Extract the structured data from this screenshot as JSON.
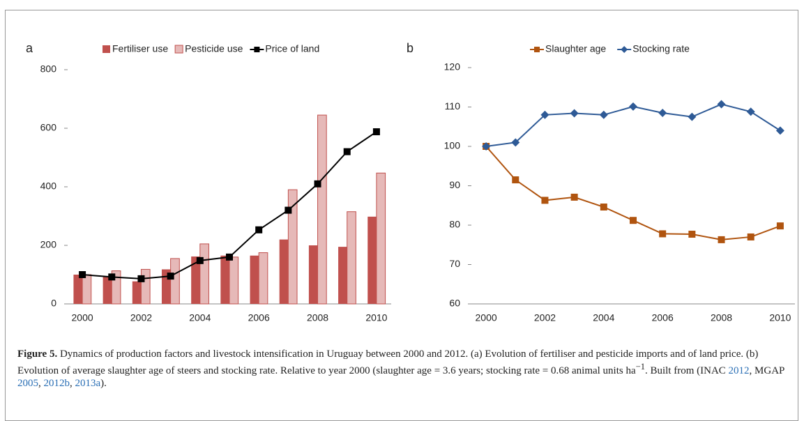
{
  "chart_data": [
    {
      "type": "bar",
      "panel_label": "a",
      "categories": [
        "2000",
        null,
        "2002",
        null,
        "2004",
        null,
        "2006",
        null,
        "2008",
        null,
        "2010"
      ],
      "series": [
        {
          "name": "Fertiliser use",
          "type": "bar",
          "color": "#c0504d",
          "values": [
            100,
            95,
            77,
            118,
            162,
            165,
            165,
            220,
            200,
            195,
            298
          ]
        },
        {
          "name": "Pesticide use",
          "type": "bar",
          "color": "#e6b9b8",
          "edge": "#c0504d",
          "values": [
            100,
            113,
            118,
            155,
            205,
            160,
            175,
            390,
            645,
            315,
            447
          ]
        },
        {
          "name": "Price of land",
          "type": "line",
          "color": "#000000",
          "marker": "square",
          "values": [
            100,
            92,
            86,
            95,
            148,
            160,
            253,
            320,
            410,
            520,
            588
          ]
        }
      ],
      "ylim": [
        0,
        800
      ],
      "yticks": [
        0,
        200,
        400,
        600,
        800
      ],
      "legend": "top"
    },
    {
      "type": "line",
      "panel_label": "b",
      "categories": [
        "2000",
        null,
        "2002",
        null,
        "2004",
        null,
        "2006",
        null,
        "2008",
        null,
        "2010"
      ],
      "series": [
        {
          "name": "Slaughter age",
          "type": "line",
          "color": "#b0540f",
          "marker": "square",
          "values": [
            100,
            91.5,
            86.3,
            87.1,
            84.6,
            81.2,
            77.8,
            77.7,
            76.3,
            77,
            79.8
          ]
        },
        {
          "name": "Stocking rate",
          "type": "line",
          "color": "#2e5a96",
          "marker": "diamond",
          "values": [
            100,
            101,
            108,
            108.4,
            108,
            110.1,
            108.5,
            107.5,
            110.7,
            108.8,
            104
          ]
        }
      ],
      "ylim": [
        60,
        120
      ],
      "yticks": [
        60,
        70,
        80,
        90,
        100,
        110,
        120
      ],
      "legend": "top"
    }
  ],
  "caption": {
    "label": "Figure 5.",
    "runs": [
      {
        "text": " Dynamics of production factors and livestock intensification in Uruguay between 2000 and 2012. (a) Evolution of fertiliser and pesticide imports and of land price. (b) Evolution of average slaughter age of steers and stocking rate. Relative to year 2000 (slaughter age = 3.6 years; stocking rate = 0.68 animal units ha",
        "style": "plain"
      },
      {
        "text": "−1",
        "style": "sup"
      },
      {
        "text": ". Built from (INAC ",
        "style": "plain"
      },
      {
        "text": "2012",
        "style": "link"
      },
      {
        "text": ", MGAP ",
        "style": "plain"
      },
      {
        "text": "2005",
        "style": "link"
      },
      {
        "text": ", ",
        "style": "plain"
      },
      {
        "text": "2012b",
        "style": "link"
      },
      {
        "text": ", ",
        "style": "plain"
      },
      {
        "text": "2013a",
        "style": "link"
      },
      {
        "text": ").",
        "style": "plain"
      }
    ]
  }
}
